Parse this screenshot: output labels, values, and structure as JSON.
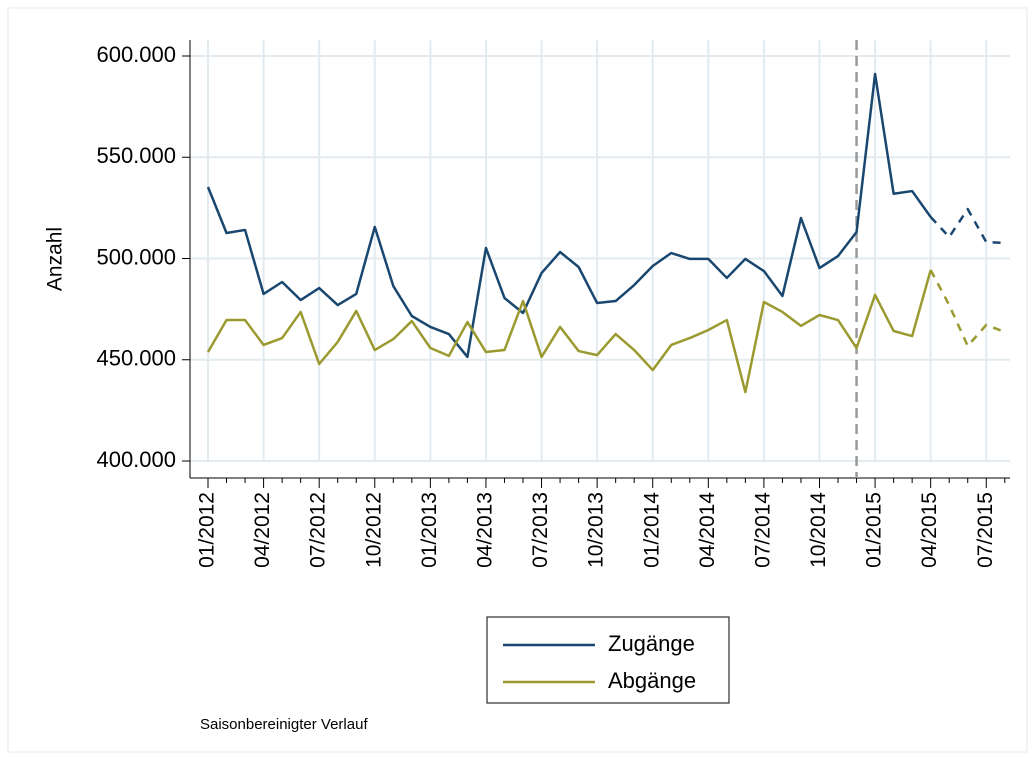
{
  "chart_data": {
    "type": "line",
    "y_label": "Anzahl",
    "note": "Saisonbereinigter Verlauf",
    "categories": [
      "01/2012",
      null,
      null,
      "04/2012",
      null,
      null,
      "07/2012",
      null,
      null,
      "10/2012",
      null,
      null,
      "01/2013",
      null,
      null,
      "04/2013",
      null,
      null,
      "07/2013",
      null,
      null,
      "10/2013",
      null,
      null,
      "01/2014",
      null,
      null,
      "04/2014",
      null,
      null,
      "07/2014",
      null,
      null,
      "10/2014",
      null,
      null,
      "01/2015",
      null,
      null,
      "04/2015",
      null,
      null,
      "07/2015",
      null
    ],
    "series": [
      {
        "name": "Zugänge",
        "color": "#1a476f",
        "dashed_from": 39,
        "values": [
          535300,
          512600,
          514100,
          482500,
          488400,
          479500,
          485400,
          477000,
          482500,
          515600,
          486400,
          471600,
          466200,
          462700,
          451400,
          505200,
          480500,
          473100,
          492800,
          503200,
          495800,
          478000,
          479000,
          486900,
          496300,
          502700,
          499800,
          499800,
          490400,
          499800,
          493800,
          481500,
          520000,
          495300,
          501200,
          513100,
          591100,
          532000,
          533300,
          520500,
          510600,
          524400,
          508100,
          507700
        ]
      },
      {
        "name": "Abgänge",
        "color": "#9b9a31",
        "dashed_from": 39,
        "values": [
          453800,
          469600,
          469600,
          457300,
          460700,
          473600,
          447900,
          458800,
          474100,
          454800,
          460200,
          469100,
          455800,
          451900,
          468600,
          453800,
          454800,
          479000,
          451400,
          466200,
          454300,
          452300,
          462700,
          454800,
          444900,
          457300,
          460700,
          464700,
          469600,
          434000,
          478500,
          473600,
          466700,
          472100,
          469600,
          455800,
          482000,
          464200,
          461700,
          494300,
          477000,
          456800,
          467200,
          463700
        ]
      }
    ],
    "ylim": [
      400000,
      600000
    ],
    "yticks": [
      {
        "value": 400000,
        "label": "400.000"
      },
      {
        "value": 450000,
        "label": "450.000"
      },
      {
        "value": 500000,
        "label": "500.000"
      },
      {
        "value": 550000,
        "label": "550.000"
      },
      {
        "value": 600000,
        "label": "600.000"
      }
    ],
    "grid": true,
    "vline": {
      "index": 35,
      "color": "#999999"
    }
  }
}
